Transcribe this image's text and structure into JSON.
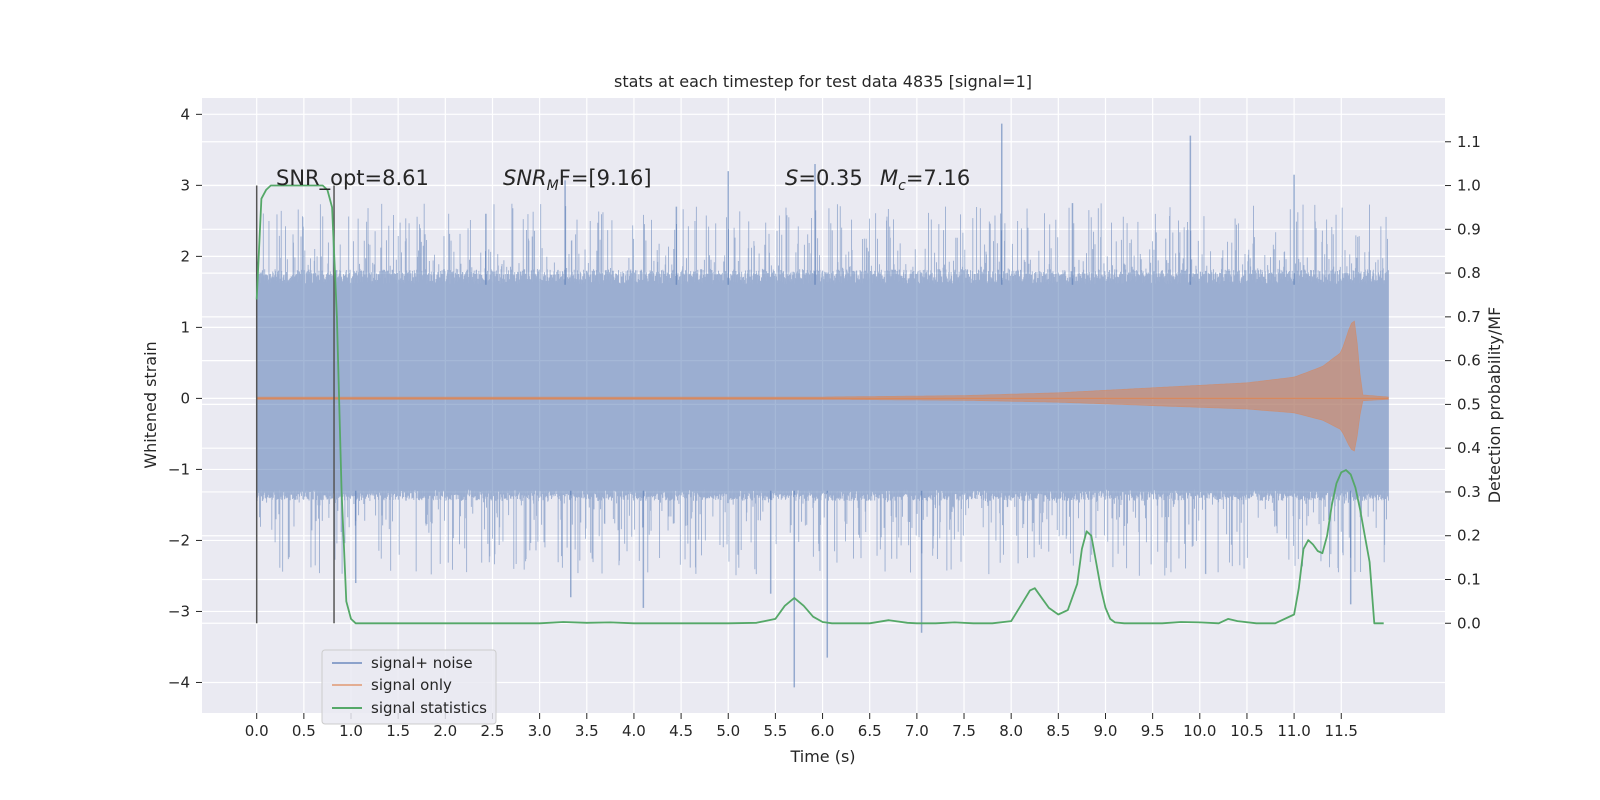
{
  "chart_data": {
    "type": "line",
    "title": "stats at each timestep for test data 4835 [signal=1]",
    "xlabel": "Time (s)",
    "ylabel": "Whitened strain",
    "y2label": "Detection probability/MF",
    "xlim": [
      -0.58,
      12.6
    ],
    "ylim": [
      -4.43,
      4.23
    ],
    "y2lim": [
      -0.205,
      1.2
    ],
    "xticks": [
      "0.0",
      "0.5",
      "1.0",
      "1.5",
      "2.0",
      "2.5",
      "3.0",
      "3.5",
      "4.0",
      "4.5",
      "5.0",
      "5.5",
      "6.0",
      "6.5",
      "7.0",
      "7.5",
      "8.0",
      "8.5",
      "9.0",
      "9.5",
      "10.0",
      "10.5",
      "11.0",
      "11.5"
    ],
    "yticks": [
      "4",
      "3",
      "2",
      "1",
      "0",
      "−1",
      "−2",
      "−3",
      "−4"
    ],
    "y2ticks": [
      "1.1",
      "1.0",
      "0.9",
      "0.8",
      "0.7",
      "0.6",
      "0.5",
      "0.4",
      "0.3",
      "0.2",
      "0.1",
      "0.0"
    ],
    "grid": true,
    "legend_position": "lower-left",
    "colors": {
      "background": "#eaeaf2",
      "grid": "#ffffff",
      "noise": "#4c72b0",
      "signal": "#dd8452",
      "statistic": "#55a868",
      "marker_line": "#555555"
    },
    "annotations": {
      "snr_opt": "SNR_opt=8.61",
      "snr_mf_main": "SNR",
      "snr_mf_sub": "M",
      "snr_mf_rest": "F=[9.16]",
      "s_sym": "S",
      "s_val": "=0.35",
      "mc_sym": "M",
      "mc_sub": "c",
      "mc_val": "=7.16"
    },
    "vertical_lines": [
      0.0,
      0.82
    ],
    "series": [
      {
        "name": "signal+ noise",
        "kind": "noise-envelope",
        "t_range": [
          0.0,
          12.0
        ],
        "core_band": [
          -1.35,
          1.75
        ],
        "max_peak": 3.87,
        "min_dip": -4.07,
        "peaks": [
          [
            3.27,
            3.07
          ],
          [
            5.0,
            3.2
          ],
          [
            5.92,
            3.3
          ],
          [
            7.9,
            3.87
          ],
          [
            9.9,
            3.7
          ],
          [
            11.0,
            3.15
          ],
          [
            2.43,
            2.6
          ],
          [
            4.45,
            2.7
          ],
          [
            8.65,
            2.75
          ]
        ],
        "dips": [
          [
            5.7,
            -4.07
          ],
          [
            6.05,
            -3.65
          ],
          [
            7.05,
            -3.3
          ],
          [
            3.33,
            -2.8
          ],
          [
            4.1,
            -2.95
          ],
          [
            5.45,
            -2.75
          ],
          [
            11.6,
            -2.9
          ],
          [
            1.05,
            -2.6
          ]
        ]
      },
      {
        "name": "signal only",
        "kind": "chirp",
        "t_range": [
          0.0,
          12.0
        ],
        "envelope_points": [
          [
            0,
            0.02
          ],
          [
            6,
            0.02
          ],
          [
            7.5,
            0.04
          ],
          [
            8.5,
            0.08
          ],
          [
            9.5,
            0.15
          ],
          [
            10.5,
            0.22
          ],
          [
            11.0,
            0.3
          ],
          [
            11.3,
            0.45
          ],
          [
            11.5,
            0.65
          ],
          [
            11.6,
            1.05
          ],
          [
            11.65,
            1.1
          ],
          [
            11.68,
            0.6
          ],
          [
            11.72,
            0.05
          ],
          [
            12.0,
            0.02
          ]
        ],
        "peak_time": 11.65,
        "peak_value": 1.1,
        "min_value": -0.72
      },
      {
        "name": "signal statistics",
        "kind": "probability",
        "axis": "right",
        "x": [
          0.0,
          0.05,
          0.1,
          0.15,
          0.2,
          0.3,
          0.4,
          0.5,
          0.6,
          0.7,
          0.75,
          0.8,
          0.85,
          0.9,
          0.95,
          1.0,
          1.05,
          1.1,
          1.15,
          1.25,
          1.5,
          2.0,
          2.5,
          3.0,
          3.25,
          3.5,
          3.75,
          4.0,
          4.5,
          5.0,
          5.3,
          5.5,
          5.6,
          5.7,
          5.8,
          5.9,
          6.0,
          6.1,
          6.3,
          6.5,
          6.7,
          6.9,
          7.0,
          7.2,
          7.4,
          7.6,
          7.8,
          8.0,
          8.1,
          8.2,
          8.25,
          8.3,
          8.4,
          8.5,
          8.6,
          8.7,
          8.75,
          8.8,
          8.85,
          8.9,
          8.95,
          9.0,
          9.05,
          9.1,
          9.2,
          9.4,
          9.6,
          9.8,
          10.0,
          10.2,
          10.3,
          10.4,
          10.6,
          10.8,
          11.0,
          11.05,
          11.1,
          11.15,
          11.2,
          11.25,
          11.3,
          11.35,
          11.4,
          11.45,
          11.5,
          11.55,
          11.6,
          11.65,
          11.7,
          11.75,
          11.8,
          11.85,
          11.9,
          11.95
        ],
        "values": [
          0.74,
          0.97,
          0.99,
          1.0,
          1.0,
          1.0,
          1.0,
          1.0,
          1.0,
          1.0,
          0.99,
          0.95,
          0.7,
          0.3,
          0.05,
          0.01,
          0.0,
          0.0,
          0.0,
          0.0,
          0.0,
          0.0,
          0.0,
          0.0,
          0.003,
          0.001,
          0.002,
          0.0,
          0.0,
          0.0,
          0.001,
          0.01,
          0.04,
          0.058,
          0.04,
          0.015,
          0.003,
          0.0,
          0.0,
          0.0,
          0.007,
          0.001,
          0.0,
          0.0,
          0.002,
          0.0,
          0.0,
          0.005,
          0.04,
          0.075,
          0.08,
          0.065,
          0.035,
          0.02,
          0.03,
          0.09,
          0.17,
          0.21,
          0.2,
          0.14,
          0.08,
          0.035,
          0.01,
          0.002,
          0.0,
          0.0,
          0.0,
          0.003,
          0.002,
          0.0,
          0.01,
          0.005,
          0.0,
          0.0,
          0.02,
          0.08,
          0.17,
          0.19,
          0.18,
          0.165,
          0.16,
          0.2,
          0.27,
          0.32,
          0.345,
          0.35,
          0.34,
          0.31,
          0.26,
          0.2,
          0.14,
          0.0,
          0.0,
          0.0
        ]
      }
    ],
    "legend": [
      "signal+ noise",
      "signal only",
      "signal statistics"
    ]
  }
}
